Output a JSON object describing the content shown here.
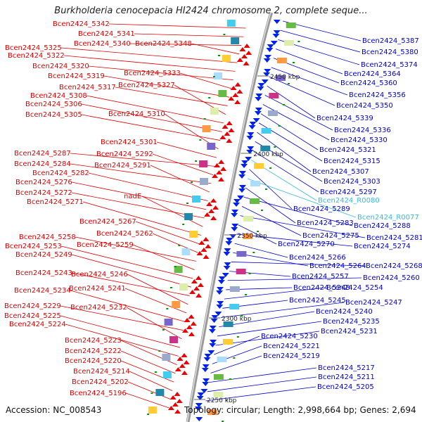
{
  "title": "Burkholderia cenocepacia HI2424 chromosome 2, complete seque...",
  "footer": {
    "accession": "Accession: NC_008543",
    "topology": "Topology: circular; Length: 2,998,664 bp; Genes: 2,694"
  },
  "colors": {
    "left_label": "#dd0000",
    "right_label": "#0000cc",
    "rna_label": "#33bbdd",
    "backbone": "#999999",
    "tick": "#009900"
  },
  "scale_labels": [
    {
      "text": "2450 kbp"
    },
    {
      "text": "2400 kbp"
    },
    {
      "text": "2350 kbp"
    },
    {
      "text": "2300 kbp"
    },
    {
      "text": "2250 kbp"
    }
  ],
  "left_labels": [
    "Bcen2424_5342",
    "Bcen2424_5341",
    "Bcen2424_5340",
    "Bcen2424_5348",
    "Bcen2424_5325",
    "Bcen2424_5322",
    "Bcen2424_5320",
    "Bcen2424_5333",
    "Bcen2424_5319",
    "Bcen2424_5317",
    "Bcen2424_5327",
    "Bcen2424_5308",
    "Bcen2424_5306",
    "Bcen2424_5305",
    "Bcen2424_5310",
    "Bcen2424_5301",
    "Bcen2424_5287",
    "Bcen2424_5292",
    "Bcen2424_5284",
    "Bcen2424_5291",
    "Bcen2424_5282",
    "Bcen2424_5276",
    "Bcen2424_5272",
    "nadE",
    "Bcen2424_5271",
    "Bcen2424_5267",
    "Bcen2424_5262",
    "Bcen2424_5258",
    "Bcen2424_5259",
    "Bcen2424_5253",
    "Bcen2424_5249",
    "Bcen2424_5243",
    "Bcen2424_5246",
    "Bcen2424_5241",
    "Bcen2424_5234",
    "Bcen2424_5229",
    "Bcen2424_5232",
    "Bcen2424_5225",
    "Bcen2424_5224",
    "Bcen2424_5223",
    "Bcen2424_5222",
    "Bcen2424_5220",
    "Bcen2424_5214",
    "Bcen2424_5202",
    "Bcen2424_5196"
  ],
  "right_labels": [
    "Bcen2424_5387",
    "Bcen2424_5380",
    "Bcen2424_5374",
    "Bcen2424_5364",
    "Bcen2424_5360",
    "Bcen2424_5356",
    "Bcen2424_5350",
    "Bcen2424_5339",
    "Bcen2424_5336",
    "Bcen2424_5330",
    "Bcen2424_5321",
    "Bcen2424_5315",
    "Bcen2424_5307",
    "Bcen2424_5303",
    "Bcen2424_5297",
    "Bcen2424_R0080",
    "Bcen2424_5289",
    "Bcen2424_R0077",
    "Bcen2424_5283",
    "Bcen2424_5288",
    "Bcen2424_5275",
    "Bcen2424_5281",
    "Bcen2424_5270",
    "Bcen2424_5274",
    "Bcen2424_5266",
    "Bcen2424_5264",
    "Bcen2424_5268",
    "Bcen2424_5257",
    "Bcen2424_5260",
    "Bcen2424_5248",
    "Bcen2424_5254",
    "Bcen2424_5245",
    "Bcen2424_5247",
    "Bcen2424_5240",
    "Bcen2424_5235",
    "Bcen2424_5231",
    "Bcen2424_5230",
    "Bcen2424_5221",
    "Bcen2424_5219",
    "Bcen2424_5217",
    "Bcen2424_5211",
    "Bcen2424_5205"
  ]
}
